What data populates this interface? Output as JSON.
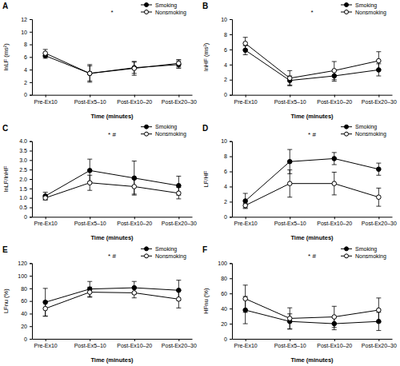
{
  "chart_data": [
    {
      "type": "line",
      "title": "A",
      "annotation": "*",
      "ylabel": "lnLF (ms²)",
      "xlabel": "Time (minutes)",
      "categories": [
        "Pre-Ex10",
        "Post-Ex5–10",
        "Post-Ex10–20",
        "Post-Ex20–30"
      ],
      "ylim": [
        0,
        12
      ],
      "yticks": [
        0,
        2,
        4,
        6,
        8,
        10,
        12
      ],
      "legend": "upper right",
      "series": [
        {
          "name": "Smoking",
          "color": "#000000",
          "marker": "circle",
          "values": [
            6.2,
            3.4,
            4.3,
            4.8
          ],
          "errors": [
            0.4,
            1.2,
            0.9,
            0.6
          ]
        },
        {
          "name": "Nonsmoking",
          "color": "#000000",
          "marker": "circle-open",
          "values": [
            6.6,
            3.4,
            4.2,
            5.0
          ],
          "errors": [
            0.6,
            1.4,
            1.1,
            0.6
          ]
        }
      ]
    },
    {
      "type": "line",
      "title": "B",
      "annotation": "*",
      "ylabel": "lnHF (ms²)",
      "xlabel": "Time (minutes)",
      "categories": [
        "Pre-Ex10",
        "Post-Ex5–10",
        "Post-Ex10–20",
        "Post-Ex20–30"
      ],
      "ylim": [
        0,
        10
      ],
      "yticks": [
        0,
        2,
        4,
        6,
        8,
        10
      ],
      "legend": "upper right",
      "series": [
        {
          "name": "Smoking",
          "color": "#000000",
          "marker": "circle",
          "values": [
            5.9,
            1.9,
            2.5,
            3.3
          ],
          "errors": [
            0.6,
            0.6,
            0.7,
            0.8
          ]
        },
        {
          "name": "Nonsmoking",
          "color": "#000000",
          "marker": "circle-open",
          "values": [
            6.8,
            2.2,
            3.2,
            4.5
          ],
          "errors": [
            0.8,
            1.0,
            1.2,
            1.2
          ]
        }
      ]
    },
    {
      "type": "line",
      "title": "C",
      "annotation": "* #",
      "ylabel": "lnLF/lnHF",
      "xlabel": "Time (minutes)",
      "categories": [
        "Pre-Ex10",
        "Post-Ex5–10",
        "Post-Ex10–20",
        "Post-Ex20–30"
      ],
      "ylim": [
        0,
        4
      ],
      "yticks": [
        0,
        0.5,
        {
          "value": 1,
          "label": "1.0"
        },
        1.5,
        {
          "value": 2,
          "label": "2.0"
        },
        2.5,
        {
          "value": 3,
          "label": "3.0"
        },
        3.5,
        {
          "value": 4,
          "label": "4.0"
        }
      ],
      "legend": "upper right",
      "series": [
        {
          "name": "Smoking",
          "color": "#000000",
          "marker": "circle",
          "values": [
            1.1,
            2.45,
            2.05,
            1.65
          ],
          "errors": [
            0.2,
            0.6,
            0.9,
            0.5
          ]
        },
        {
          "name": "Nonsmoking",
          "color": "#000000",
          "marker": "circle-open",
          "values": [
            1.0,
            1.8,
            1.6,
            1.25
          ],
          "errors": [
            0.1,
            0.4,
            0.4,
            0.3
          ]
        }
      ]
    },
    {
      "type": "line",
      "title": "D",
      "annotation": "* #",
      "ylabel": "LF/HF",
      "xlabel": "Time (minutes)",
      "categories": [
        "Pre-Ex10",
        "Post-Ex5–10",
        "Post-Ex10–20",
        "Post-Ex20–30"
      ],
      "ylim": [
        0,
        10
      ],
      "yticks": [
        0,
        2,
        4,
        6,
        8,
        10
      ],
      "legend": "upper right",
      "series": [
        {
          "name": "Smoking",
          "color": "#000000",
          "marker": "circle",
          "values": [
            2.1,
            7.3,
            7.7,
            6.3
          ],
          "errors": [
            1.0,
            1.6,
            0.8,
            0.8
          ]
        },
        {
          "name": "Nonsmoking",
          "color": "#000000",
          "marker": "circle-open",
          "values": [
            1.5,
            4.4,
            4.4,
            2.6
          ],
          "errors": [
            0.3,
            1.8,
            1.5,
            1.2
          ]
        }
      ]
    },
    {
      "type": "line",
      "title": "E",
      "annotation": "* #",
      "ylabel": "LFnu (%)",
      "xlabel": "Time (minutes)",
      "categories": [
        "Pre-Ex10",
        "Post-Ex5–10",
        "Post-Ex10–20",
        "Post-Ex20–30"
      ],
      "ylim": [
        0,
        120
      ],
      "yticks": [
        0,
        20,
        40,
        60,
        80,
        100,
        120
      ],
      "legend": "upper right",
      "series": [
        {
          "name": "Smoking",
          "color": "#000000",
          "marker": "circle",
          "values": [
            58,
            79,
            81,
            77
          ],
          "errors": [
            22,
            12,
            10,
            16
          ]
        },
        {
          "name": "Nonsmoking",
          "color": "#000000",
          "marker": "circle-open",
          "values": [
            48,
            74,
            73,
            63
          ],
          "errors": [
            12,
            8,
            8,
            14
          ]
        }
      ]
    },
    {
      "type": "line",
      "title": "F",
      "annotation": "* #",
      "ylabel": "HFnu (%)",
      "xlabel": "Time (minutes)",
      "categories": [
        "Pre-Ex10",
        "Post-Ex5–10",
        "Post-Ex10–20",
        "Post-Ex20–30"
      ],
      "ylim": [
        0,
        100
      ],
      "yticks": [
        0,
        20,
        40,
        60,
        80,
        100
      ],
      "legend": "upper right",
      "series": [
        {
          "name": "Smoking",
          "color": "#000000",
          "marker": "circle",
          "values": [
            38,
            23,
            20,
            23
          ],
          "errors": [
            18,
            10,
            8,
            12
          ]
        },
        {
          "name": "Nonsmoking",
          "color": "#000000",
          "marker": "circle-open",
          "values": [
            53,
            27,
            29,
            38
          ],
          "errors": [
            18,
            14,
            14,
            16
          ]
        }
      ]
    }
  ]
}
